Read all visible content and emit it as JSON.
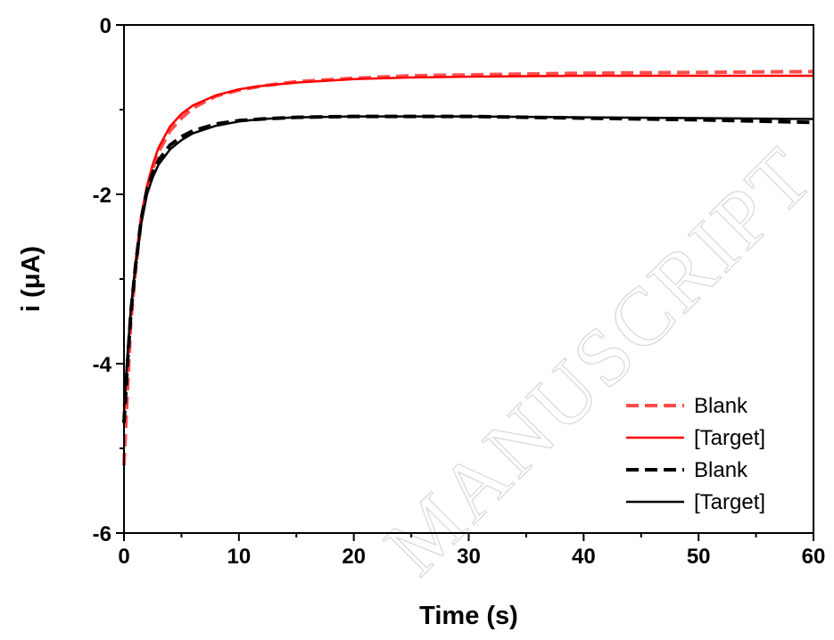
{
  "watermark": "MANUSCRIPT",
  "chart_data": {
    "type": "line",
    "title": "",
    "xlabel": "Time (s)",
    "ylabel": "i (μA)",
    "xlim": [
      0,
      60
    ],
    "ylim": [
      -6,
      0
    ],
    "xticks": [
      0,
      10,
      20,
      30,
      40,
      50,
      60
    ],
    "yticks": [
      0,
      -2,
      -4,
      -6
    ],
    "grid": false,
    "legend_position": "bottom-right",
    "series": [
      {
        "name": "Blank",
        "color": "#ff4d4d",
        "dash": "dashed",
        "x": [
          0,
          0.3,
          0.6,
          1,
          1.5,
          2,
          2.5,
          3,
          4,
          5,
          6,
          8,
          10,
          12,
          15,
          20,
          25,
          30,
          40,
          50,
          60
        ],
        "y": [
          -5.2,
          -4.3,
          -3.5,
          -2.9,
          -2.3,
          -1.95,
          -1.7,
          -1.5,
          -1.25,
          -1.1,
          -0.98,
          -0.84,
          -0.77,
          -0.72,
          -0.67,
          -0.63,
          -0.6,
          -0.59,
          -0.57,
          -0.56,
          -0.55
        ]
      },
      {
        "name": "[Target]",
        "color": "#ff0000",
        "dash": "solid",
        "x": [
          0,
          0.3,
          0.6,
          1,
          1.5,
          2,
          2.5,
          3,
          4,
          5,
          6,
          8,
          10,
          12,
          15,
          20,
          25,
          30,
          40,
          50,
          60
        ],
        "y": [
          -4.6,
          -4.0,
          -3.4,
          -2.8,
          -2.25,
          -1.9,
          -1.65,
          -1.45,
          -1.2,
          -1.05,
          -0.95,
          -0.83,
          -0.76,
          -0.72,
          -0.68,
          -0.64,
          -0.62,
          -0.61,
          -0.6,
          -0.6,
          -0.6
        ]
      },
      {
        "name": "Blank",
        "color": "#000000",
        "dash": "dashed",
        "x": [
          0,
          0.3,
          0.6,
          1,
          1.5,
          2,
          2.5,
          3,
          4,
          5,
          6,
          8,
          10,
          12,
          15,
          20,
          25,
          30,
          40,
          50,
          60
        ],
        "y": [
          -4.7,
          -4.0,
          -3.4,
          -2.85,
          -2.3,
          -1.95,
          -1.75,
          -1.6,
          -1.42,
          -1.32,
          -1.25,
          -1.17,
          -1.13,
          -1.11,
          -1.09,
          -1.08,
          -1.08,
          -1.08,
          -1.1,
          -1.12,
          -1.15
        ]
      },
      {
        "name": "[Target]",
        "color": "#000000",
        "dash": "solid",
        "x": [
          0,
          0.3,
          0.6,
          1,
          1.5,
          2,
          2.5,
          3,
          4,
          5,
          6,
          8,
          10,
          12,
          15,
          20,
          25,
          30,
          40,
          50,
          60
        ],
        "y": [
          -4.5,
          -3.9,
          -3.35,
          -2.85,
          -2.35,
          -2.0,
          -1.8,
          -1.65,
          -1.47,
          -1.36,
          -1.28,
          -1.19,
          -1.14,
          -1.11,
          -1.09,
          -1.08,
          -1.08,
          -1.08,
          -1.09,
          -1.1,
          -1.11
        ]
      }
    ]
  }
}
